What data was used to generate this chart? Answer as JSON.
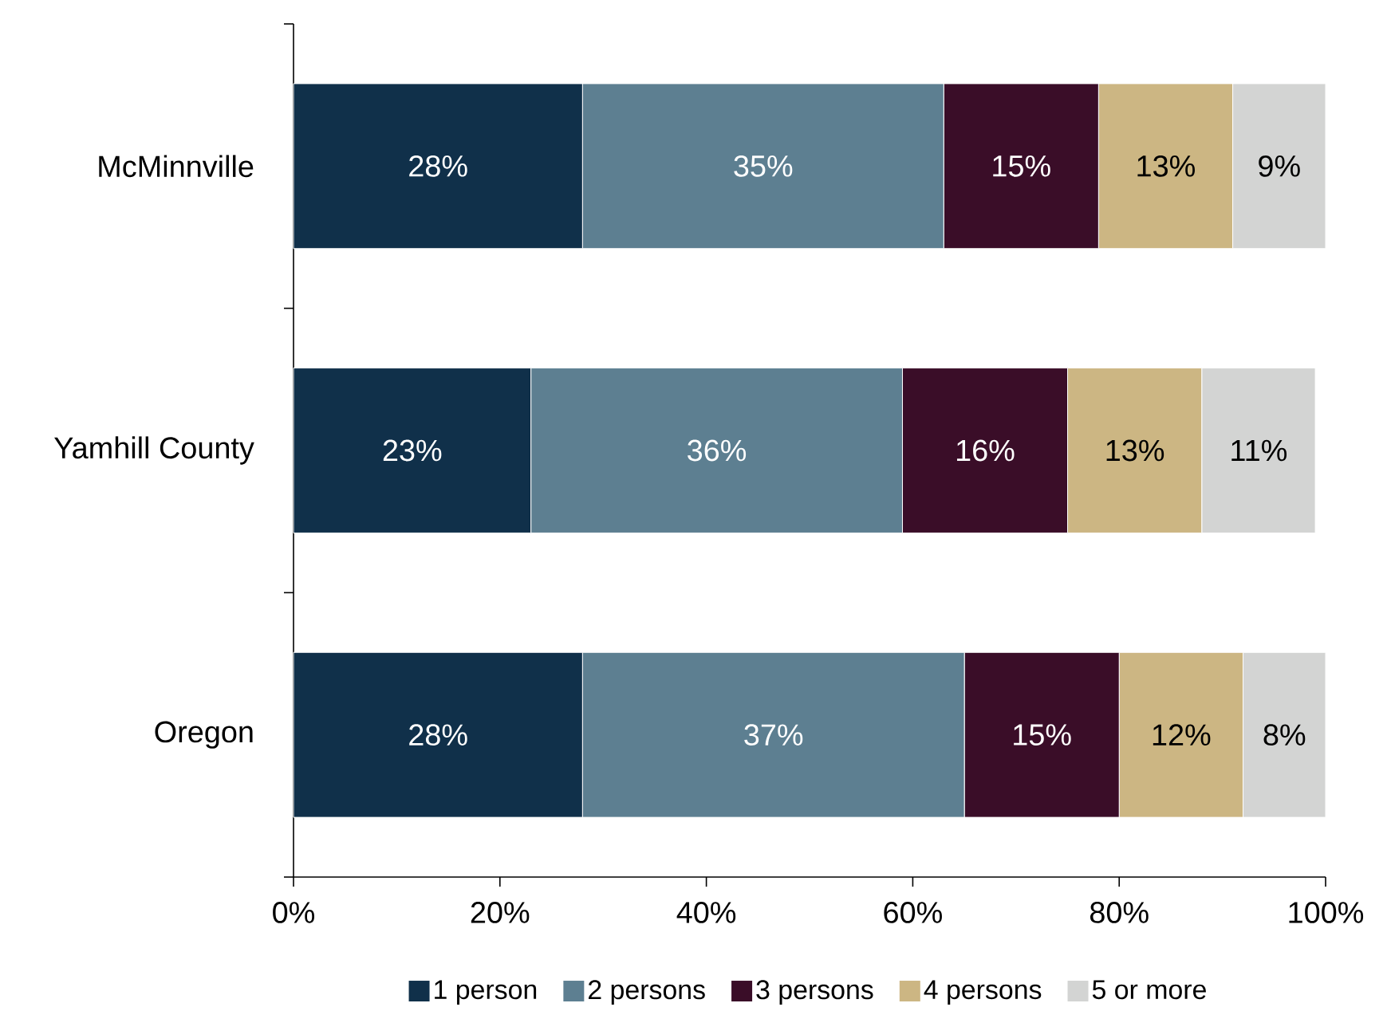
{
  "chart_data": {
    "type": "bar",
    "orientation": "horizontal",
    "stacked": true,
    "categories": [
      "McMinnville",
      "Yamhill County",
      "Oregon"
    ],
    "series": [
      {
        "name": "1 person",
        "color": "#10304a",
        "values": [
          28,
          23,
          28
        ],
        "value_labels": [
          "28%",
          "23%",
          "28%"
        ]
      },
      {
        "name": "2 persons",
        "color": "#5d7f91",
        "values": [
          35,
          36,
          37
        ],
        "value_labels": [
          "35%",
          "36%",
          "37%"
        ]
      },
      {
        "name": "3 persons",
        "color": "#3a0d28",
        "values": [
          15,
          16,
          15
        ],
        "value_labels": [
          "15%",
          "16%",
          "15%"
        ]
      },
      {
        "name": "4 persons",
        "color": "#ccb683",
        "values": [
          13,
          13,
          12
        ],
        "value_labels": [
          "13%",
          "13%",
          "12%"
        ]
      },
      {
        "name": "5 or more",
        "color": "#d3d4d3",
        "values": [
          9,
          11,
          8
        ],
        "value_labels": [
          "9%",
          "11%",
          "8%"
        ]
      }
    ],
    "xlim": [
      0,
      100
    ],
    "xticks": [
      {
        "value": 0,
        "label": "0%"
      },
      {
        "value": 20,
        "label": "20%"
      },
      {
        "value": 40,
        "label": "40%"
      },
      {
        "value": 60,
        "label": "60%"
      },
      {
        "value": 80,
        "label": "80%"
      },
      {
        "value": 100,
        "label": "100%"
      }
    ],
    "legend": "bottom"
  }
}
